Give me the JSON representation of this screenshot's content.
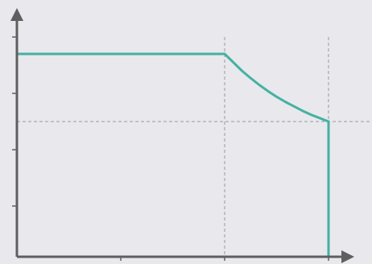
{
  "colors": {
    "background": "#e8e8ed",
    "axis": "#5f5f5f",
    "curve": "#45b1a1",
    "guide": "#9a9a9a"
  },
  "chart_data": {
    "type": "line",
    "title": "",
    "xlabel": "",
    "ylabel": "",
    "xlim": [
      0,
      10.83
    ],
    "ylim": [
      0,
      3.9
    ],
    "grid": false,
    "legend": "none",
    "axis_arrows": true,
    "tick_labels_shown": false,
    "x_ticks": [
      3,
      6,
      9
    ],
    "y_ticks": [
      0.9,
      1.9,
      2.9,
      3.9
    ],
    "series": [
      {
        "points": [
          [
            0,
            3.6
          ],
          [
            6,
            3.6
          ],
          [
            6.25,
            3.45
          ],
          [
            6.5,
            3.3
          ],
          [
            6.75,
            3.17
          ],
          [
            7,
            3.05
          ],
          [
            7.25,
            2.94
          ],
          [
            7.5,
            2.84
          ],
          [
            7.75,
            2.75
          ],
          [
            8,
            2.67
          ],
          [
            8.25,
            2.59
          ],
          [
            8.5,
            2.52
          ],
          [
            8.75,
            2.46
          ],
          [
            9,
            2.4
          ],
          [
            9,
            0
          ]
        ]
      }
    ],
    "reference_lines": [
      {
        "orientation": "horizontal",
        "y": 2.4,
        "style": "dashed"
      },
      {
        "orientation": "vertical",
        "x": 6,
        "style": "dashed"
      },
      {
        "orientation": "vertical",
        "x": 9,
        "style": "dashed"
      }
    ]
  }
}
